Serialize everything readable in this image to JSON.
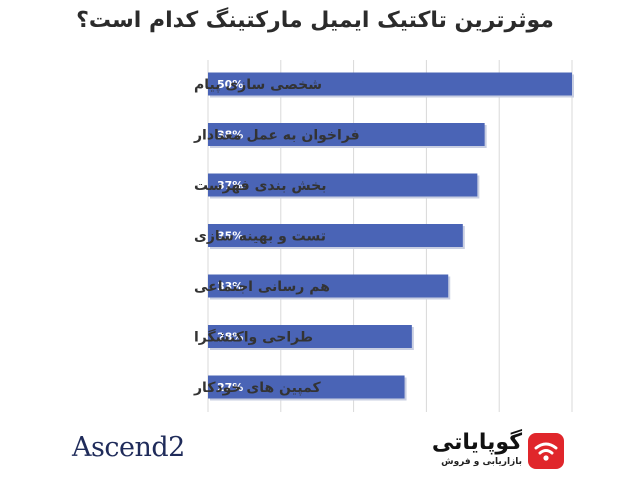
{
  "chart_data": {
    "type": "bar",
    "orientation": "horizontal",
    "title": "موثرترین تاکتیک ایمیل مارکتینگ کدام است؟",
    "categories": [
      "شخصی سازی پیام",
      "فراخوان به عمل معنادار",
      "بخش بندی فهرست",
      "تست و بهینه سازی",
      "هم رسانی اجتماعی",
      "طراحی واکنشگرا",
      "کمپین های خودکار"
    ],
    "values": [
      50,
      38,
      37,
      35,
      33,
      28,
      27
    ],
    "value_labels": [
      "50%",
      "38%",
      "37%",
      "35%",
      "33%",
      "28%",
      "27%"
    ],
    "xlim": [
      0,
      50
    ],
    "grid": true,
    "bar_color": "#4a64b6",
    "xlabel": "",
    "ylabel": ""
  },
  "branding": {
    "source_logo": "Ascend2",
    "publisher_name": "گوپایاتی",
    "publisher_tagline": "بازاریابی و فروش",
    "publisher_icon": "wifi-signal-icon",
    "publisher_icon_color": "#e0262b"
  }
}
